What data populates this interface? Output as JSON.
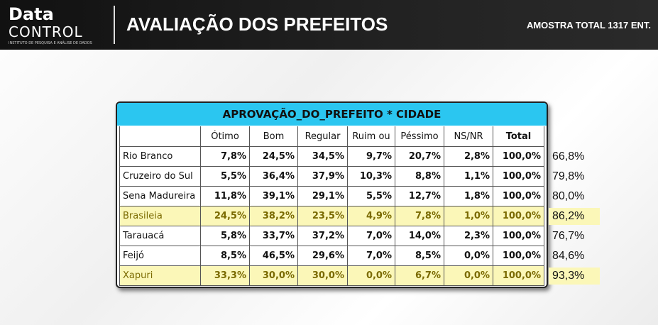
{
  "header": {
    "logo_top": "Data",
    "logo_bottom": "CONTROL",
    "logo_tagline": "INSTITUTO DE PESQUISA E ANÁLISE DE DADOS",
    "title": "AVALIAÇÃO DOS PREFEITOS",
    "sample": "AMOSTRA TOTAL 1317 ENT."
  },
  "table": {
    "title": "APROVAÇÃO_DO_PREFEITO * CIDADE",
    "columns": [
      "Ótimo",
      "Bom",
      "Regular",
      "Ruim ou",
      "Péssimo",
      "NS/NR",
      "Total"
    ],
    "rows": [
      {
        "name": "Rio Branco",
        "cells": [
          "7,8%",
          "24,5%",
          "34,5%",
          "9,7%",
          "20,7%",
          "2,8%",
          "100,0%"
        ],
        "approval": "66,8%",
        "highlight": false
      },
      {
        "name": "Cruzeiro do Sul",
        "cells": [
          "5,5%",
          "36,4%",
          "37,9%",
          "10,3%",
          "8,8%",
          "1,1%",
          "100,0%"
        ],
        "approval": "79,8%",
        "highlight": false
      },
      {
        "name": "Sena Madureira",
        "cells": [
          "11,8%",
          "39,1%",
          "29,1%",
          "5,5%",
          "12,7%",
          "1,8%",
          "100,0%"
        ],
        "approval": "80,0%",
        "highlight": false
      },
      {
        "name": "Brasileia",
        "cells": [
          "24,5%",
          "38,2%",
          "23,5%",
          "4,9%",
          "7,8%",
          "1,0%",
          "100,0%"
        ],
        "approval": "86,2%",
        "highlight": true
      },
      {
        "name": "Tarauacá",
        "cells": [
          "5,8%",
          "33,7%",
          "37,2%",
          "7,0%",
          "14,0%",
          "2,3%",
          "100,0%"
        ],
        "approval": "76,7%",
        "highlight": false
      },
      {
        "name": "Feijó",
        "cells": [
          "8,5%",
          "46,5%",
          "29,6%",
          "7,0%",
          "8,5%",
          "0,0%",
          "100,0%"
        ],
        "approval": "84,6%",
        "highlight": false
      },
      {
        "name": "Xapuri",
        "cells": [
          "33,3%",
          "30,0%",
          "30,0%",
          "0,0%",
          "6,7%",
          "0,0%",
          "100,0%"
        ],
        "approval": "93,3%",
        "highlight": true
      }
    ]
  }
}
